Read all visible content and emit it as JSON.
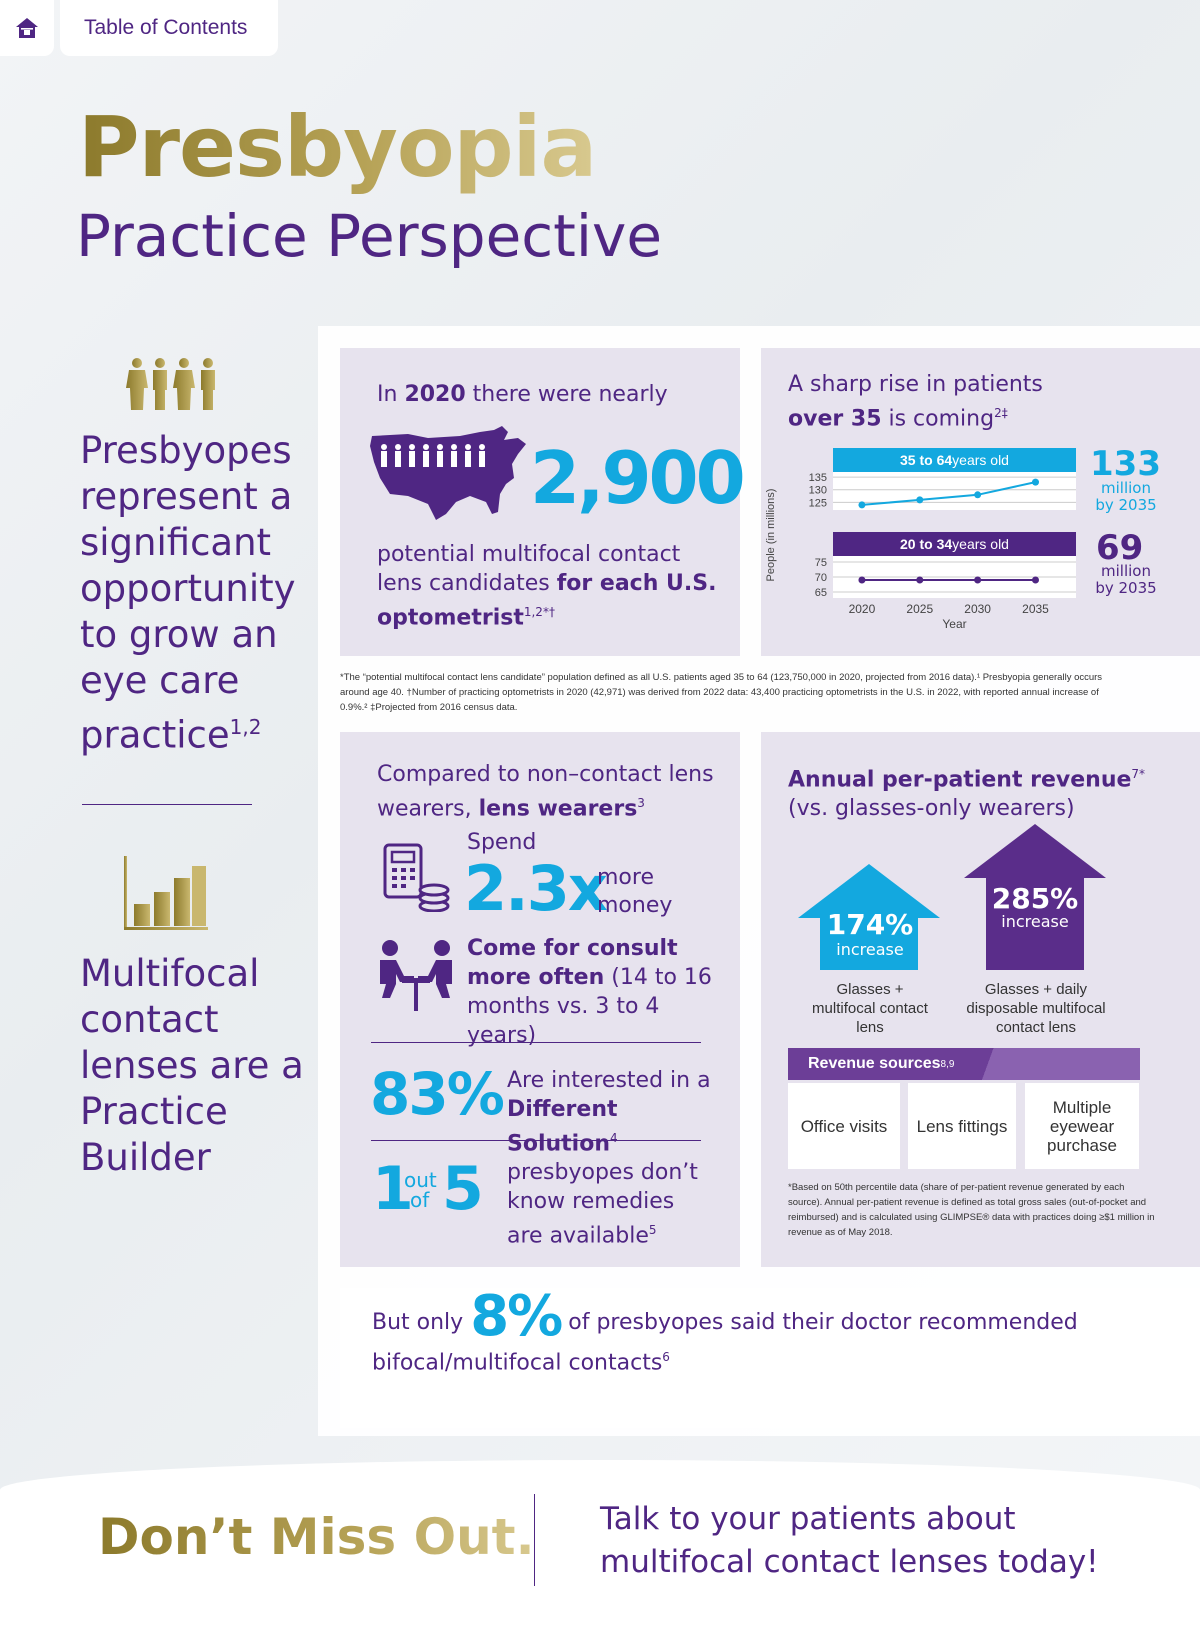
{
  "nav": {
    "toc_label": "Table of Contents"
  },
  "title": {
    "main": "Presbyopia",
    "sub": "Practice Perspective"
  },
  "left": {
    "text1": "Presbyopes represent a significant opportunity to grow an eye care practice",
    "text1_sup": "1,2",
    "text2": "Multifocal contact lenses are a Practice Builder"
  },
  "card1": {
    "intro_a": "In ",
    "intro_year": "2020",
    "intro_b": " there were nearly",
    "big_number": "2,900",
    "desc_a": "potential multifocal contact lens candidates ",
    "desc_bold": "for each U.S. optometrist",
    "desc_sup": "1,2*†"
  },
  "card2": {
    "headline_a": "A sharp rise in patients",
    "headline_bold": "over 35",
    "headline_b": " is coming",
    "headline_sup": "2‡",
    "band1_bold": "35 to 64",
    "band1_light": " years old",
    "band2_bold": "20 to 34",
    "band2_light": " years old",
    "stat1_value": "133",
    "stat1_unit": "million",
    "stat1_by": "by 2035",
    "stat2_value": "69",
    "stat2_unit": "million",
    "stat2_by": "by 2035",
    "y_axis_label": "People (in millions)",
    "x_axis_label": "Year",
    "colors": {
      "band1": "#13a8df",
      "band2": "#4f2683"
    }
  },
  "chart_data": [
    {
      "type": "line",
      "xlabel": "Year",
      "ylabel": "People (in millions)",
      "x": [
        2020,
        2025,
        2030,
        2035
      ],
      "series": [
        {
          "name": "35 to 64 years old",
          "values": [
            124,
            126,
            128,
            133
          ]
        }
      ],
      "y_ticks": [
        125,
        130,
        135
      ],
      "ylim": [
        122,
        137
      ]
    },
    {
      "type": "line",
      "xlabel": "Year",
      "ylabel": "People (in millions)",
      "x": [
        2020,
        2025,
        2030,
        2035
      ],
      "series": [
        {
          "name": "20 to 34 years old",
          "values": [
            69,
            69,
            69,
            69
          ]
        }
      ],
      "y_ticks": [
        65,
        70,
        75
      ],
      "ylim": [
        63,
        77
      ]
    }
  ],
  "footnote1": "*The “potential multifocal contact lens candidate” population defined as all U.S. patients aged 35 to 64 (123,750,000 in 2020, projected from 2016 data).¹ Presbyopia generally occurs around age 40. †Number of practicing optometrists in 2020 (42,971) was derived from 2022 data: 43,400 practicing optometrists in the U.S. in 2022, with reported annual increase of 0.9%.² ‡Projected from 2016 census data.",
  "card3": {
    "intro_a": "Compared to non–contact lens wearers, ",
    "intro_bold": "lens wearers",
    "intro_sup": "3",
    "spend_label": "Spend",
    "spend_value": "2.3x",
    "spend_more": "more",
    "spend_money": "money",
    "consult_bold": "Come for consult more often",
    "consult_rest": " (14 to 16 months vs. 3 to 4 years)",
    "pct_value": "83%",
    "pct_text_a": "Are interested in a ",
    "pct_text_bold": "Different Solution",
    "pct_sup": "4",
    "ratio_1": "1",
    "ratio_out": "out",
    "ratio_of": "of",
    "ratio_5": "5",
    "ratio_text": "presbyopes don’t know remedies are available",
    "ratio_sup": "5"
  },
  "card4": {
    "title_bold": "Annual per-patient revenue",
    "title_sup": "7*",
    "subtitle": "(vs. glasses-only wearers)",
    "house1_pct": "174%",
    "house1_word": "increase",
    "house1_label": "Glasses + multifocal contact lens",
    "house2_pct": "285%",
    "house2_word": "increase",
    "house2_label": "Glasses + daily disposable multifocal contact lens",
    "rev_title": "Revenue sources",
    "rev_sup": "8,9",
    "sources": [
      "Office visits",
      "Lens fittings",
      "Multiple eyewear purchase"
    ],
    "footnote": "*Based on 50th percentile data (share of per-patient revenue generated by each source). Annual per-patient revenue is defined as total gross sales (out-of-pocket and reimbursed) and is calculated using GLIMPSE® data with practices doing ≥$1 million in revenue as of May 2018."
  },
  "bottom": {
    "text_a": "But only ",
    "pct": "8%",
    "text_b": " of presbyopes said their doctor recommended",
    "text_c": "bifocal/multifocal contacts",
    "sup": "6"
  },
  "footer": {
    "cta": "Don’t Miss Out.",
    "line1": "Talk to your patients about",
    "line2": "multifocal contact lenses today!"
  }
}
